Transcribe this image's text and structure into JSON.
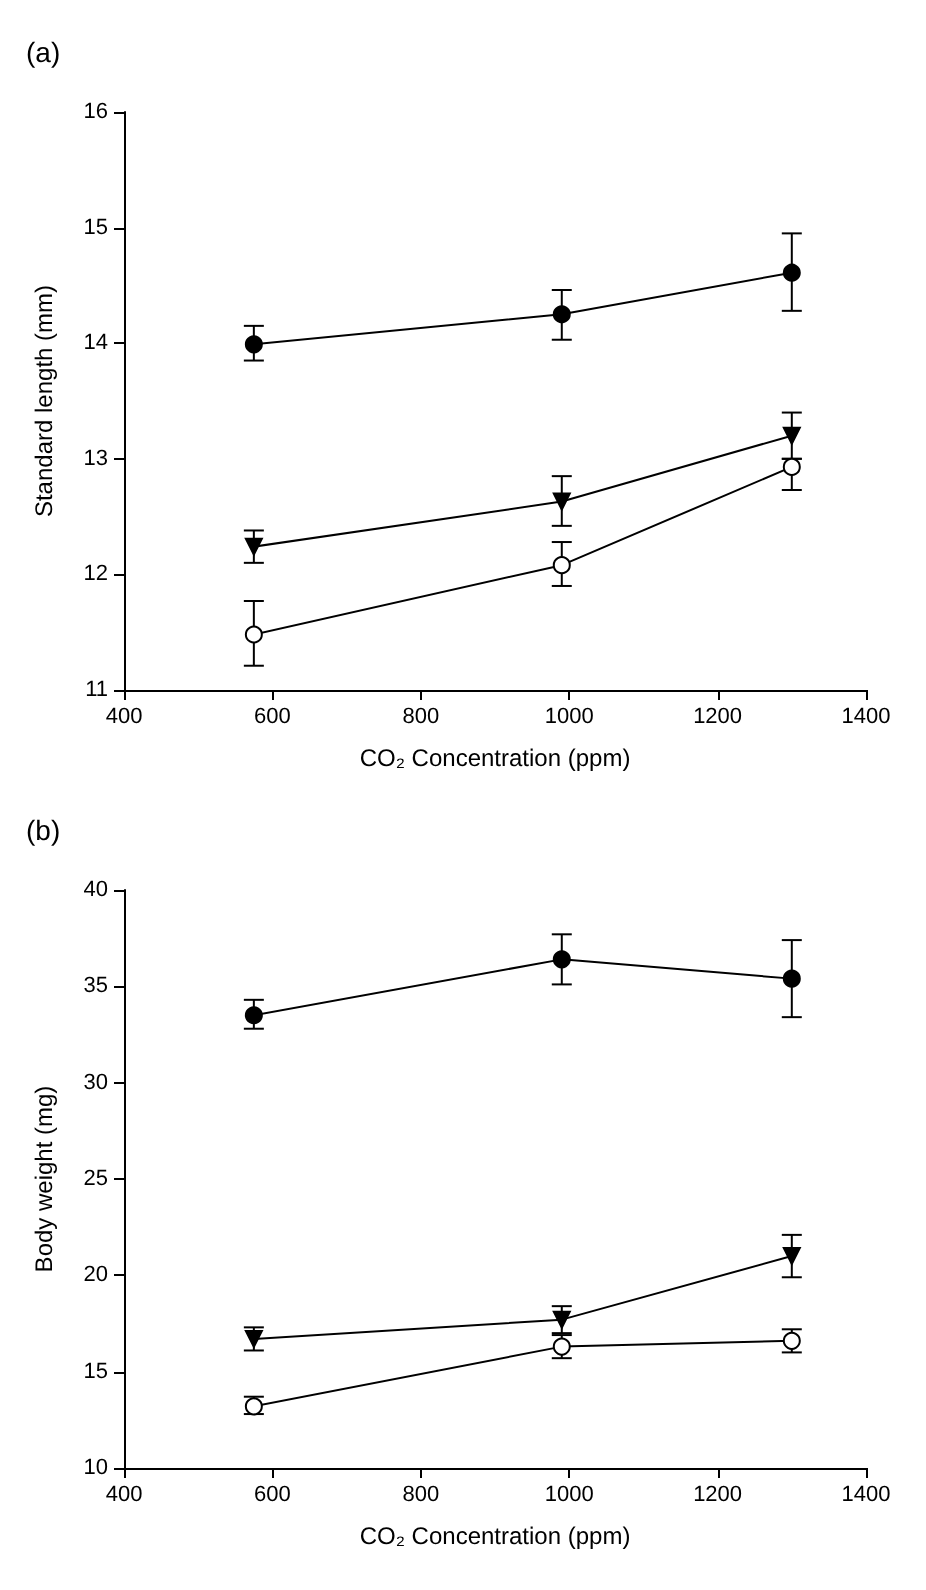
{
  "chart_data": [
    {
      "type": "line",
      "title": "(a)",
      "xlabel": "CO₂ Concentration (ppm)",
      "ylabel": "Standard length (mm)",
      "x": [
        575,
        990,
        1300
      ],
      "xlim": [
        400,
        1400
      ],
      "xticks": [
        400,
        600,
        800,
        1000,
        1200,
        1400
      ],
      "ylim": [
        11,
        16
      ],
      "yticks": [
        11,
        12,
        13,
        14,
        15,
        16
      ],
      "grid": false,
      "line_style": "solid",
      "series": [
        {
          "color": "#000000",
          "marker": "circle",
          "values": [
            13.99,
            14.25,
            14.61
          ],
          "errors": [
            [
              13.85,
              14.15
            ],
            [
              14.03,
              14.46
            ],
            [
              14.28,
              14.95
            ]
          ]
        },
        {
          "color": "#000000",
          "marker": "triangle",
          "values": [
            12.24,
            12.63,
            13.2
          ],
          "errors": [
            [
              12.1,
              12.38
            ],
            [
              12.42,
              12.85
            ],
            [
              13.0,
              13.4
            ]
          ]
        },
        {
          "color": "#ffffff",
          "marker": "circle",
          "values": [
            11.48,
            12.08,
            12.93
          ],
          "errors": [
            [
              11.21,
              11.77
            ],
            [
              11.9,
              12.28
            ],
            [
              12.73,
              13.0
            ]
          ]
        }
      ]
    },
    {
      "type": "line",
      "title": "(b)",
      "xlabel": "CO₂ Concentration (ppm)",
      "ylabel": "Body weight (mg)",
      "x": [
        575,
        990,
        1300
      ],
      "xlim": [
        400,
        1400
      ],
      "xticks": [
        400,
        600,
        800,
        1000,
        1200,
        1400
      ],
      "ylim": [
        10,
        40
      ],
      "yticks": [
        10,
        15,
        20,
        25,
        30,
        35,
        40
      ],
      "grid": false,
      "line_style": "solid",
      "series": [
        {
          "color": "#000000",
          "marker": "circle",
          "values": [
            33.5,
            36.4,
            35.4
          ],
          "errors": [
            [
              32.8,
              34.3
            ],
            [
              35.1,
              37.7
            ],
            [
              33.4,
              37.4
            ]
          ]
        },
        {
          "color": "#000000",
          "marker": "triangle",
          "values": [
            16.7,
            17.7,
            21.0
          ],
          "errors": [
            [
              16.1,
              17.3
            ],
            [
              17.0,
              18.4
            ],
            [
              19.9,
              22.1
            ]
          ]
        },
        {
          "color": "#ffffff",
          "marker": "circle",
          "values": [
            13.2,
            16.3,
            16.6
          ],
          "errors": [
            [
              12.8,
              13.7
            ],
            [
              15.7,
              16.9
            ],
            [
              16.0,
              17.2
            ]
          ]
        }
      ]
    }
  ]
}
